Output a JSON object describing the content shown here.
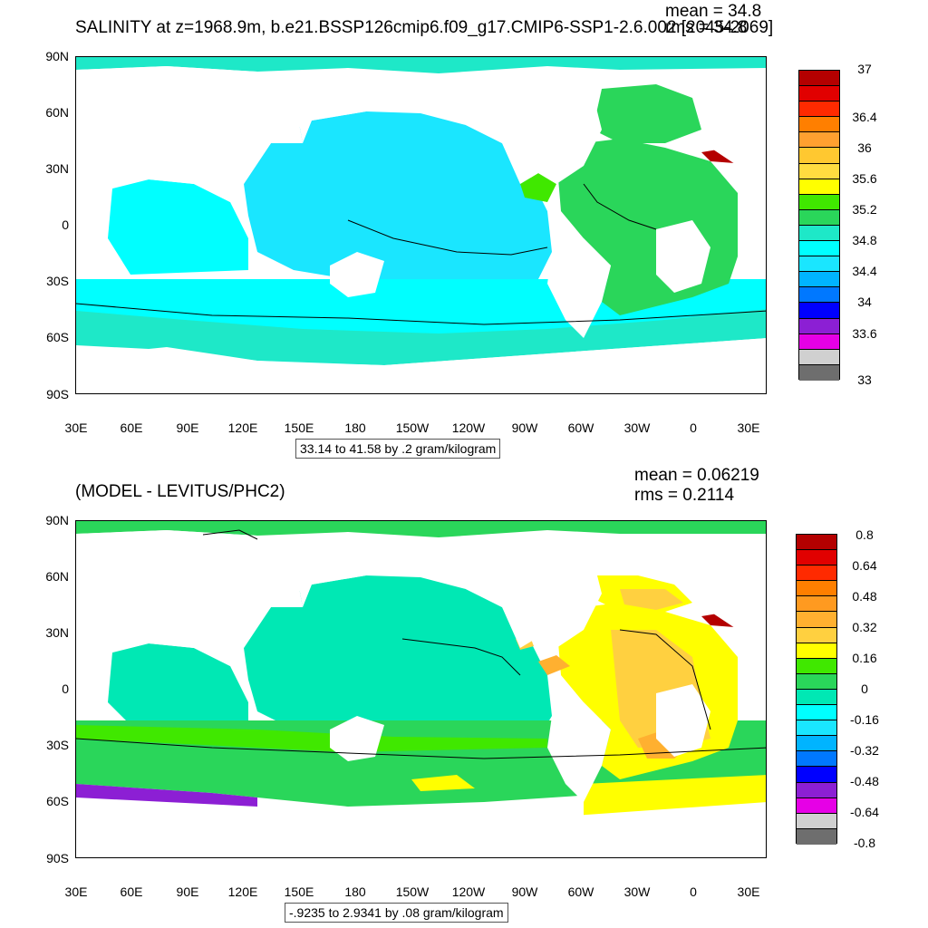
{
  "top": {
    "title": "SALINITY at z=1968.9m, b.e21.BSSP126cmip6.f09_g17.CMIP6-SSP1-2.6.002 [2045-2069]",
    "mean_text": "mean = 34.8",
    "rms_text": "rms = 34.8",
    "range_text": "33.14 to 41.58 by .2 gram/kilogram",
    "lat_labels": [
      "90N",
      "60N",
      "30N",
      "0",
      "30S",
      "60S",
      "90S"
    ],
    "lon_labels": [
      "30E",
      "60E",
      "90E",
      "120E",
      "150E",
      "180",
      "150W",
      "120W",
      "90W",
      "60W",
      "30W",
      "0",
      "30E"
    ],
    "colorbar": {
      "colors": [
        "#b40000",
        "#e10000",
        "#ff2a00",
        "#ff7f00",
        "#ffa030",
        "#ffc830",
        "#ffdc40",
        "#ffff00",
        "#40e800",
        "#2ad65a",
        "#1ee8c8",
        "#00ffff",
        "#1ae6ff",
        "#00b4ff",
        "#0078ff",
        "#0000ff",
        "#8c1fd4",
        "#e600e6",
        "#d0d0d0",
        "#6e6e6e"
      ],
      "labels": [
        "37",
        "36.4",
        "36",
        "35.6",
        "35.2",
        "34.8",
        "34.4",
        "34",
        "33.6",
        "33"
      ]
    }
  },
  "bottom": {
    "title": "(MODEL - LEVITUS/PHC2)",
    "mean_text": "mean = 0.06219",
    "rms_text": "rms = 0.2114",
    "range_text": "-.9235 to 2.9341 by .08 gram/kilogram",
    "lat_labels": [
      "90N",
      "60N",
      "30N",
      "0",
      "30S",
      "60S",
      "90S"
    ],
    "lon_labels": [
      "30E",
      "60E",
      "90E",
      "120E",
      "150E",
      "180",
      "150W",
      "120W",
      "90W",
      "60W",
      "30W",
      "0",
      "30E"
    ],
    "colorbar": {
      "colors": [
        "#b40000",
        "#e10000",
        "#ff2a00",
        "#ff7f00",
        "#ff9a20",
        "#ffb030",
        "#ffd040",
        "#ffff00",
        "#40e800",
        "#2ad65a",
        "#00e8b4",
        "#00ffff",
        "#1ae6ff",
        "#00b4ff",
        "#0078ff",
        "#0000ff",
        "#8c1fd4",
        "#e600e6",
        "#d0d0d0",
        "#6e6e6e"
      ],
      "labels": [
        "0.8",
        "0.64",
        "0.48",
        "0.32",
        "0.16",
        "0",
        "-0.16",
        "-0.32",
        "-0.48",
        "-0.64",
        "-0.8"
      ]
    }
  }
}
